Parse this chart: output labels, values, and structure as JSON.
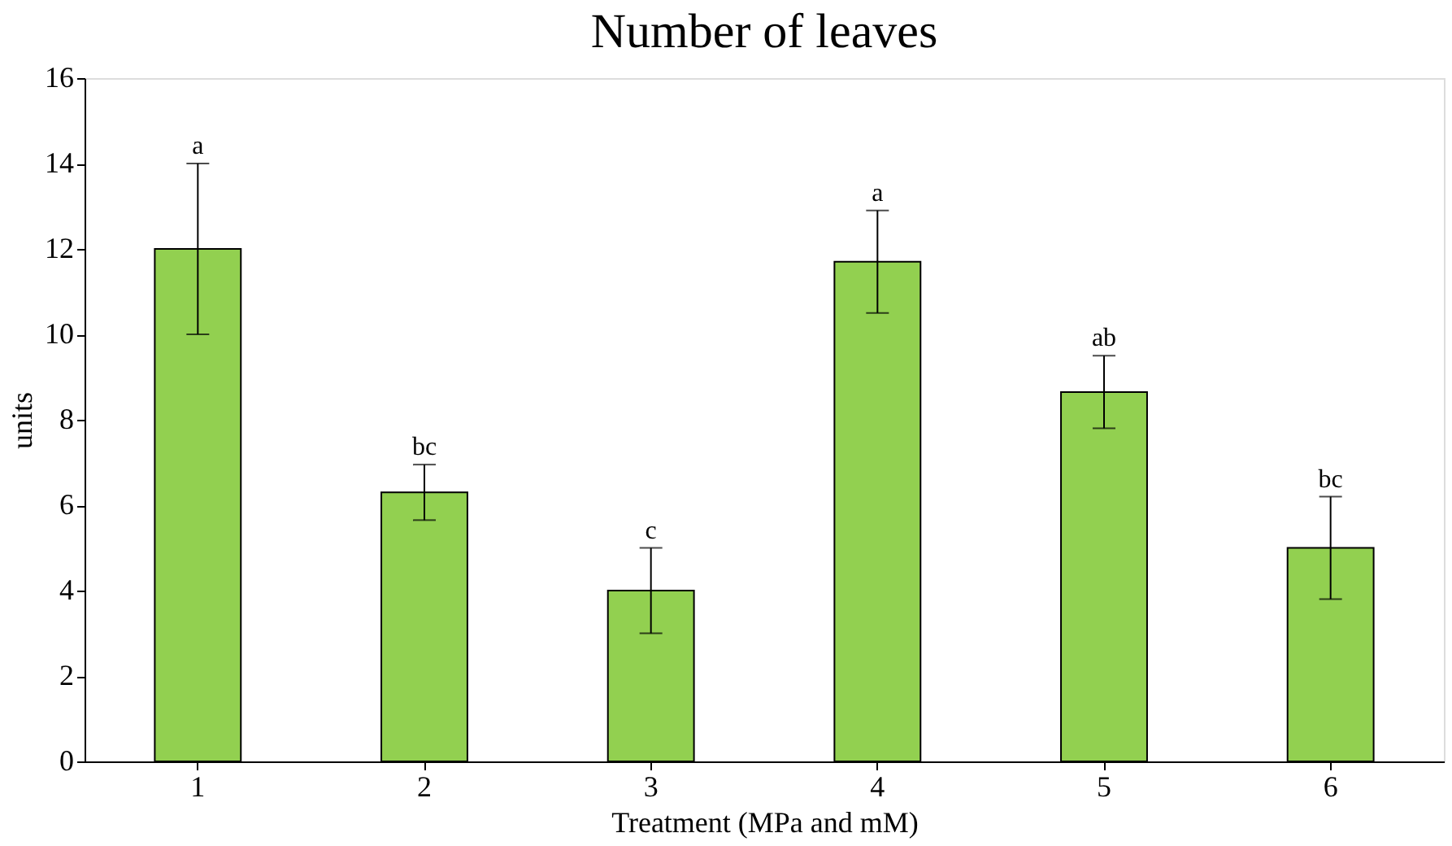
{
  "chart_data": {
    "type": "bar",
    "title": "Number of leaves",
    "xlabel": "Treatment (MPa and mM)",
    "ylabel": "units",
    "categories": [
      "1",
      "2",
      "3",
      "4",
      "5",
      "6"
    ],
    "values": [
      12,
      6.3,
      4,
      11.7,
      8.65,
      5
    ],
    "errors": [
      2,
      0.65,
      1,
      1.2,
      0.85,
      1.2
    ],
    "color": "#92d050",
    "ylim": [
      0,
      16
    ],
    "yticks": [
      0,
      2,
      4,
      6,
      8,
      10,
      12,
      14,
      16
    ],
    "grid": false,
    "annotations": [
      {
        "text": "a",
        "x": "1",
        "y": 14
      },
      {
        "text": "bc",
        "x": "2",
        "y": 6.95
      },
      {
        "text": "c",
        "x": "3",
        "y": 5
      },
      {
        "text": "a",
        "x": "4",
        "y": 12.9
      },
      {
        "text": "ab",
        "x": "5",
        "y": 9.5
      },
      {
        "text": "bc",
        "x": "6",
        "y": 6.2
      }
    ]
  }
}
